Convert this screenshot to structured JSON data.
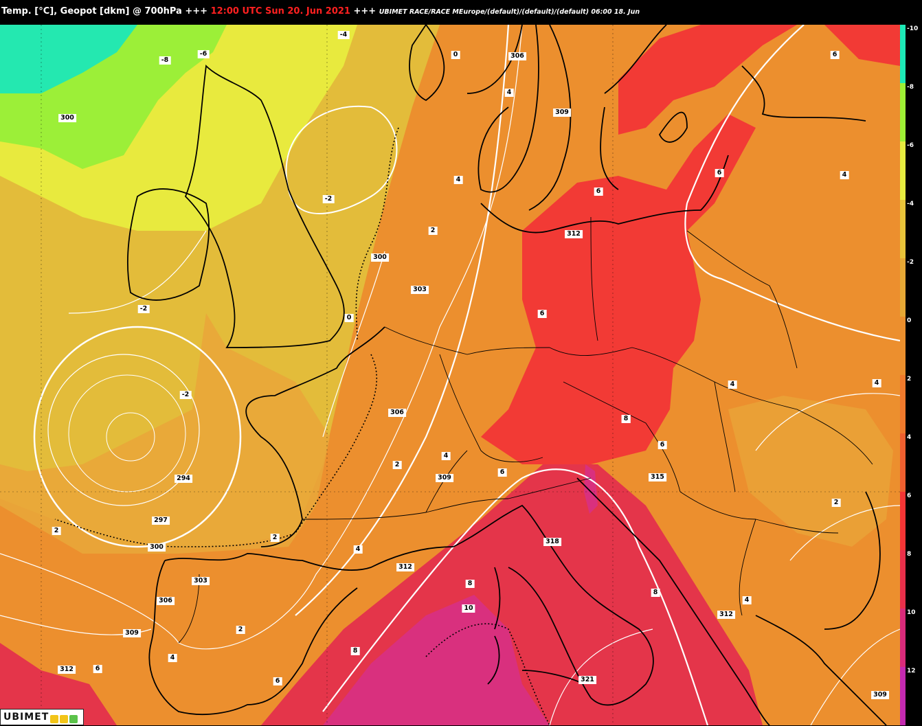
{
  "header": {
    "prefix": "Temp. [°C], Geopot [dkm] @ 700hPa +++ ",
    "datetime": "12:00 UTC Sun 20. Jun 2021",
    "suffix": " +++ ",
    "source": "UBIMET RACE/RACE MEurope/(default)/(default)/(default) 06:00 18. Jun"
  },
  "legend": {
    "ticks": [
      "-10",
      "-8",
      "-6",
      "-4",
      "-2",
      "0",
      "2",
      "4",
      "6",
      "8",
      "10",
      "12"
    ],
    "colors": [
      "#1de9b6",
      "#9ef035",
      "#e6ec40",
      "#e8c33a",
      "#e6a835",
      "#eb8f2d",
      "#f07a2c",
      "#ef5f2f",
      "#f53535",
      "#e8304a",
      "#d92b7a",
      "#c42ab0"
    ]
  },
  "colors": {
    "cold": "#24e8b0",
    "green": "#9cef38",
    "yellow": "#e8ea3e",
    "gold": "#e3bc3a",
    "orange_light": "#e9a63a",
    "orange": "#ec8f2e",
    "orange_dark": "#ef7a2c",
    "red": "#f23a35",
    "crimson": "#e4354a",
    "magenta": "#d9307e"
  },
  "temp_labels": [
    "-8",
    "-6",
    "-4",
    "0",
    "4",
    "6",
    "4",
    "6",
    "6",
    "4",
    "2",
    "2",
    "-2",
    "-2",
    "-2",
    "0",
    "6",
    "2",
    "4",
    "8",
    "6",
    "4",
    "4",
    "6",
    "2",
    "4",
    "8",
    "10",
    "8",
    "8",
    "4",
    "2",
    "4",
    "6",
    "6",
    "8",
    "2"
  ],
  "geo_labels": [
    "300",
    "306",
    "309",
    "309",
    "315",
    "312",
    "300",
    "303",
    "294",
    "297",
    "300",
    "303",
    "306",
    "309",
    "312",
    "312",
    "318",
    "315",
    "321",
    "312",
    "309",
    "306"
  ],
  "logo": {
    "name": "UBIMET"
  }
}
